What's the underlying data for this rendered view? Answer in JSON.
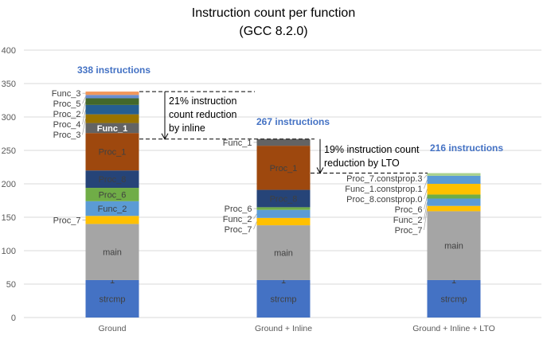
{
  "chart_data": {
    "type": "bar",
    "stacked": true,
    "title": "Instruction count per function",
    "subtitle": "(GCC 8.2.0)",
    "xlabel": "",
    "ylabel": "",
    "ylim": [
      0,
      400
    ],
    "yticks": [
      0,
      50,
      100,
      150,
      200,
      250,
      300,
      350,
      400
    ],
    "grid": true,
    "categories": [
      "Ground",
      "Ground + Inline",
      "Ground + Inline + LTO"
    ],
    "bars": [
      {
        "total_label": "338 instructions",
        "segments": [
          {
            "name": "strcmp",
            "value": 56,
            "color": "#4472C4"
          },
          {
            "name": "1",
            "value": 0,
            "color": "#4472C4"
          },
          {
            "name": "main",
            "value": 84,
            "color": "#A5A5A5"
          },
          {
            "name": "Proc_7",
            "value": 12,
            "color": "#FFC000"
          },
          {
            "name": "Func_2",
            "value": 22,
            "color": "#5B9BD5"
          },
          {
            "name": "Proc_6",
            "value": 20,
            "color": "#70AD47"
          },
          {
            "name": "Proc_8",
            "value": 26,
            "color": "#264478"
          },
          {
            "name": "Proc_1",
            "value": 56,
            "color": "#9E480E"
          },
          {
            "name": "Func_1",
            "value": 15,
            "color": "#636363"
          },
          {
            "name": "Proc_3",
            "value": 13,
            "color": "#997300"
          },
          {
            "name": "Proc_4",
            "value": 14,
            "color": "#255E91"
          },
          {
            "name": "Proc_2",
            "value": 10,
            "color": "#43682B"
          },
          {
            "name": "Proc_5",
            "value": 5,
            "color": "#698ED0"
          },
          {
            "name": "Func_3",
            "value": 5,
            "color": "#F1975A"
          }
        ]
      },
      {
        "total_label": "267 instructions",
        "segments": [
          {
            "name": "strcmp",
            "value": 56,
            "color": "#4472C4"
          },
          {
            "name": "1",
            "value": 0,
            "color": "#4472C4"
          },
          {
            "name": "main",
            "value": 82,
            "color": "#A5A5A5"
          },
          {
            "name": "Proc_7",
            "value": 11,
            "color": "#FFC000"
          },
          {
            "name": "Func_2",
            "value": 12,
            "color": "#5B9BD5"
          },
          {
            "name": "Proc_6",
            "value": 4,
            "color": "#70AD47"
          },
          {
            "name": "Proc_8",
            "value": 26,
            "color": "#264478"
          },
          {
            "name": "Proc_1",
            "value": 66,
            "color": "#9E480E"
          },
          {
            "name": "Func_1",
            "value": 10,
            "color": "#636363"
          }
        ]
      },
      {
        "total_label": "216 instructions",
        "segments": [
          {
            "name": "strcmp",
            "value": 56,
            "color": "#4472C4"
          },
          {
            "name": "1",
            "value": 0,
            "color": "#4472C4"
          },
          {
            "name": "main",
            "value": 103,
            "color": "#A5A5A5"
          },
          {
            "name": "Proc_7",
            "value": 8,
            "color": "#FFC000"
          },
          {
            "name": "Func_2",
            "value": 11,
            "color": "#5B9BD5"
          },
          {
            "name": "Proc_6",
            "value": 6,
            "color": "#70AD47"
          },
          {
            "name": "Proc_8.constprop.0",
            "value": 16,
            "color": "#FFC000"
          },
          {
            "name": "Func_1.constprop.1",
            "value": 12,
            "color": "#5B9BD5"
          },
          {
            "name": "Proc_7.constprop.3",
            "value": 4,
            "color": "#A9D18E"
          }
        ]
      }
    ],
    "annotations": [
      {
        "text_lines": [
          "21% instruction",
          "count reduction",
          "by inline"
        ],
        "from": 338,
        "to": 267
      },
      {
        "text_lines": [
          "19% instruction count",
          "reduction by LTO"
        ],
        "from": 267,
        "to": 216
      }
    ]
  }
}
